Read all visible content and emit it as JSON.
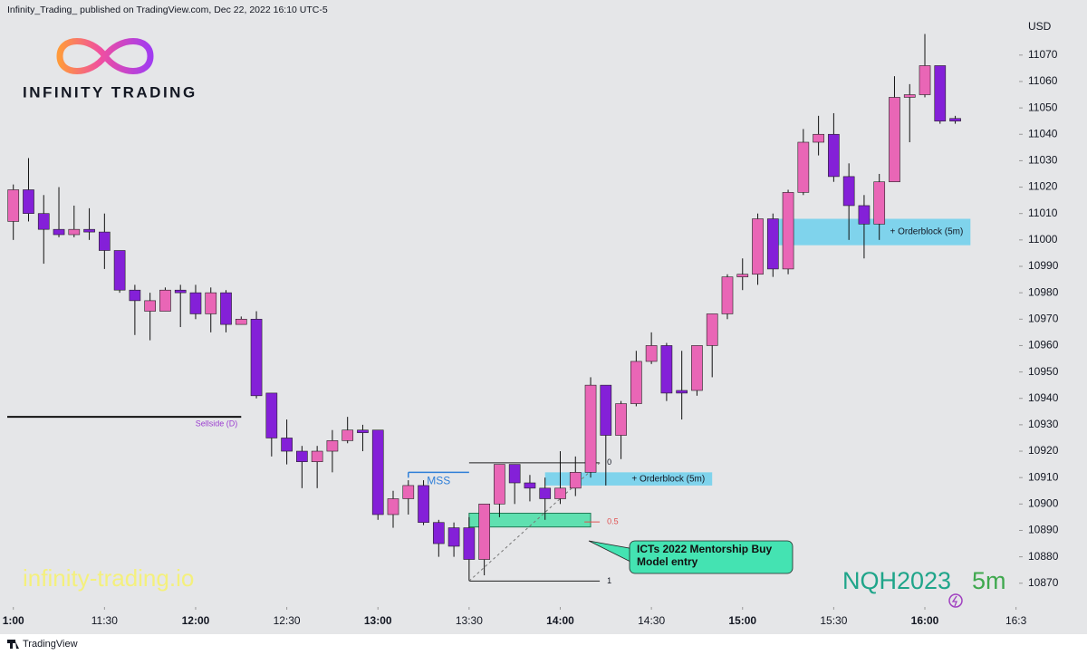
{
  "header": {
    "text": "Infinity_Trading_ published on TradingView.com, Dec 22, 2022 16:10 UTC-5"
  },
  "brand": {
    "name": "INFINITY TRADING",
    "watermark": "infinity-trading.io"
  },
  "footer": {
    "text": "TradingView"
  },
  "chart_data": {
    "type": "candlestick",
    "symbol": "NQH2023",
    "interval": "5m",
    "currency": "USD",
    "up_color": "#e966b6",
    "down_color": "#8420d8",
    "x": [
      "11:00",
      "11:05",
      "11:10",
      "11:15",
      "11:20",
      "11:25",
      "11:30",
      "11:35",
      "11:40",
      "11:45",
      "11:50",
      "11:55",
      "12:00",
      "12:05",
      "12:10",
      "12:15",
      "12:20",
      "12:25",
      "12:30",
      "12:35",
      "12:40",
      "12:45",
      "12:50",
      "12:55",
      "13:00",
      "13:05",
      "13:10",
      "13:15",
      "13:20",
      "13:25",
      "13:30",
      "13:35",
      "13:40",
      "13:45",
      "13:50",
      "13:55",
      "14:00",
      "14:05",
      "14:10",
      "14:15",
      "14:20",
      "14:25",
      "14:30",
      "14:35",
      "14:40",
      "14:45",
      "14:50",
      "14:55",
      "15:00",
      "15:05",
      "15:10",
      "15:15",
      "15:20",
      "15:25",
      "15:30",
      "15:35",
      "15:40",
      "15:45",
      "15:50",
      "15:55",
      "16:00",
      "16:05",
      "16:10"
    ],
    "open": [
      11007,
      11019,
      11010,
      11004,
      11002,
      11004,
      11003,
      10996,
      10981,
      10973,
      10973,
      10981,
      10980,
      10972,
      10980,
      10968,
      10970,
      10942,
      10925,
      10920,
      10916,
      10920,
      10924,
      10928,
      10928,
      10896,
      10902,
      10907,
      10893,
      10891,
      10891,
      10879,
      10900,
      10915,
      10908,
      10906,
      10902,
      10906,
      10912,
      10945,
      10926,
      10938,
      10954,
      10960,
      10943,
      10943,
      10960,
      10972,
      10986,
      10987,
      11008,
      10989,
      11018,
      11037,
      11040,
      11024,
      11013,
      11006,
      11022,
      11054,
      11055,
      11066,
      11046
    ],
    "high": [
      11021,
      11031,
      11017,
      11020,
      11013,
      11012,
      11010,
      10996,
      10983,
      10980,
      10982,
      10983,
      10983,
      10982,
      10981,
      10971,
      10973,
      10942,
      10932,
      10922,
      10922,
      10928,
      10933,
      10930,
      10928,
      10905,
      10909,
      10909,
      10894,
      10893,
      10895,
      10900,
      10915,
      10915,
      10911,
      10910,
      10920,
      10918,
      10948,
      10945,
      10939,
      10958,
      10965,
      10961,
      10958,
      10960,
      10972,
      10987,
      10993,
      11010,
      11010,
      11019,
      11042,
      11047,
      11048,
      11029,
      11017,
      11025,
      11062,
      11059,
      11078,
      11066,
      11047
    ],
    "low": [
      11000,
      11007,
      10991,
      11001,
      11001,
      11000,
      10989,
      10980,
      10964,
      10962,
      10973,
      10967,
      10970,
      10965,
      10965,
      10968,
      10940,
      10918,
      10915,
      10906,
      10906,
      10912,
      10923,
      10920,
      10894,
      10891,
      10896,
      10892,
      10880,
      10880,
      10871,
      10873,
      10895,
      10900,
      10901,
      10894,
      10900,
      10903,
      10910,
      10907,
      10917,
      10937,
      10953,
      10939,
      10932,
      10941,
      10948,
      10970,
      10981,
      10983,
      10986,
      10987,
      11017,
      11032,
      11022,
      11000,
      10993,
      11000,
      11022,
      11037,
      11054,
      11044,
      11044
    ],
    "close": [
      11019,
      11010,
      11004,
      11002,
      11004,
      11003,
      10996,
      10981,
      10977,
      10977,
      10981,
      10980,
      10972,
      10980,
      10968,
      10970,
      10941,
      10925,
      10920,
      10916,
      10920,
      10924,
      10928,
      10927,
      10896,
      10902,
      10907,
      10893,
      10885,
      10884,
      10879,
      10900,
      10915,
      10908,
      10906,
      10902,
      10906,
      10912,
      10945,
      10926,
      10938,
      10954,
      10960,
      10942,
      10942,
      10960,
      10972,
      10986,
      10987,
      11008,
      10989,
      11018,
      11037,
      11040,
      11024,
      11013,
      11006,
      11022,
      11054,
      11055,
      11066,
      11045,
      11045
    ],
    "xlim": [
      "10:58",
      "16:31"
    ],
    "xticks": [
      {
        "value": "11:00",
        "label": "1:00"
      },
      "11:30",
      "12:00",
      "12:30",
      "13:00",
      "13:30",
      "14:00",
      "14:30",
      "15:00",
      "15:30",
      "16:00",
      {
        "value": "16:30",
        "label": "16:3"
      }
    ],
    "ylim": [
      10861,
      11084
    ],
    "yticks": [
      10870,
      10880,
      10890,
      10900,
      10910,
      10920,
      10930,
      10940,
      10950,
      10960,
      10970,
      10980,
      10990,
      11000,
      11010,
      11020,
      11030,
      11040,
      11050,
      11060,
      11070
    ],
    "grid": false,
    "levels": [
      {
        "label": "Sellside (D)",
        "price": 10933,
        "start": "10:58",
        "end": "12:15",
        "color": "#9b3fd0"
      }
    ],
    "mss": {
      "label": "MSS",
      "price": 10912,
      "start": "13:10",
      "end": "13:30",
      "color": "#2f7fd8"
    },
    "orderblocks": [
      {
        "label": "+ Orderblock (5m)",
        "top": 11008,
        "bottom": 10998,
        "start": "15:11",
        "end": "16:15",
        "color": "#7fd3ec"
      },
      {
        "label": "+ Orderblock (5m)",
        "top": 10912,
        "bottom": 10907,
        "start": "13:55",
        "end": "14:50",
        "color": "#7fd3ec"
      }
    ],
    "fib": {
      "start": "13:30",
      "end": "14:13",
      "levels": [
        {
          "level": 0,
          "price": 10915.6
        },
        {
          "level": 0.5,
          "price": 10893.2
        },
        {
          "level": 1,
          "price": 10870.8
        }
      ]
    },
    "entry_zone": {
      "top": 10896.5,
      "bottom": 10891.3,
      "start": "13:30",
      "end": "14:10",
      "color": "#5fe0b0"
    },
    "callout": {
      "text": "ICTs 2022 Mentorship Buy Model entry",
      "color": "#44e3b2"
    }
  }
}
